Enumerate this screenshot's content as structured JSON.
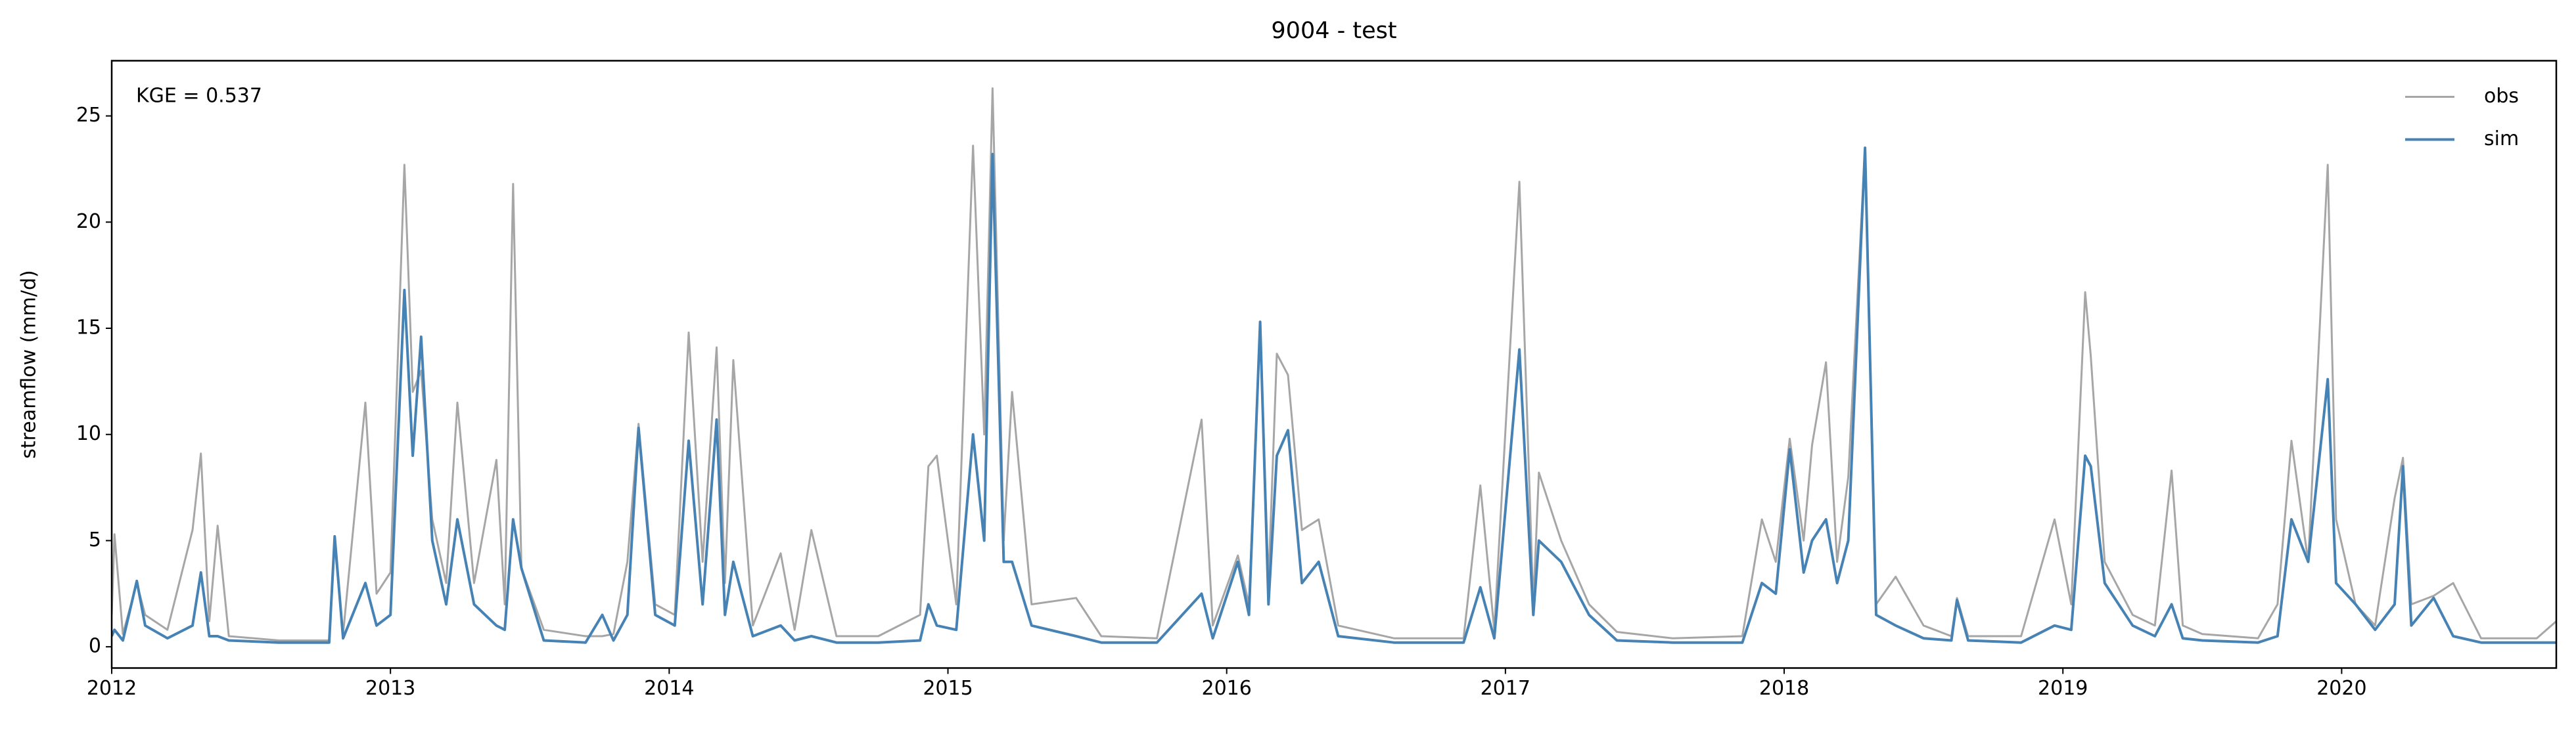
{
  "chart_data": {
    "type": "line",
    "title": "9004 - test",
    "ylabel": "streamflow (mm/d)",
    "annotation": "KGE = 0.537",
    "legend": "upper right",
    "grid": false,
    "xlim": [
      2012,
      2020.77
    ],
    "xticks": [
      2012,
      2013,
      2014,
      2015,
      2016,
      2017,
      2018,
      2019,
      2020
    ],
    "ylim": [
      -1.0,
      27.6
    ],
    "yticks": [
      0,
      5,
      10,
      15,
      20,
      25
    ],
    "x": [
      2012.0,
      2012.01,
      2012.04,
      2012.09,
      2012.12,
      2012.2,
      2012.29,
      2012.32,
      2012.35,
      2012.38,
      2012.42,
      2012.6,
      2012.78,
      2012.8,
      2012.83,
      2012.91,
      2012.95,
      2013.0,
      2013.05,
      2013.08,
      2013.11,
      2013.15,
      2013.2,
      2013.24,
      2013.3,
      2013.38,
      2013.41,
      2013.44,
      2013.47,
      2013.55,
      2013.7,
      2013.76,
      2013.8,
      2013.85,
      2013.89,
      2013.95,
      2014.02,
      2014.07,
      2014.12,
      2014.17,
      2014.2,
      2014.23,
      2014.3,
      2014.4,
      2014.45,
      2014.51,
      2014.6,
      2014.75,
      2014.9,
      2014.93,
      2014.96,
      2015.03,
      2015.09,
      2015.13,
      2015.16,
      2015.2,
      2015.23,
      2015.3,
      2015.46,
      2015.55,
      2015.75,
      2015.91,
      2015.95,
      2016.04,
      2016.08,
      2016.12,
      2016.15,
      2016.18,
      2016.22,
      2016.27,
      2016.33,
      2016.4,
      2016.6,
      2016.85,
      2016.91,
      2016.96,
      2017.05,
      2017.1,
      2017.12,
      2017.2,
      2017.3,
      2017.4,
      2017.6,
      2017.85,
      2017.92,
      2017.97,
      2018.02,
      2018.07,
      2018.1,
      2018.15,
      2018.19,
      2018.23,
      2018.29,
      2018.33,
      2018.4,
      2018.5,
      2018.6,
      2018.62,
      2018.66,
      2018.85,
      2018.97,
      2019.03,
      2019.08,
      2019.1,
      2019.15,
      2019.25,
      2019.33,
      2019.39,
      2019.43,
      2019.5,
      2019.7,
      2019.77,
      2019.82,
      2019.88,
      2019.95,
      2019.98,
      2020.05,
      2020.12,
      2020.19,
      2020.22,
      2020.25,
      2020.33,
      2020.4,
      2020.5,
      2020.7,
      2020.77
    ],
    "series": [
      {
        "name": "obs",
        "color": "#a6a6a6",
        "values": [
          1.5,
          5.3,
          0.6,
          3.0,
          1.5,
          0.8,
          5.5,
          9.1,
          1.2,
          5.7,
          0.5,
          0.3,
          0.3,
          4.8,
          0.6,
          11.5,
          2.5,
          3.5,
          22.7,
          12.0,
          13.0,
          6.0,
          3.0,
          11.5,
          3.0,
          8.8,
          2.0,
          21.8,
          3.7,
          0.8,
          0.5,
          0.5,
          0.6,
          4.0,
          10.5,
          2.0,
          1.5,
          14.8,
          4.0,
          14.1,
          3.0,
          13.5,
          1.0,
          4.4,
          0.8,
          5.5,
          0.5,
          0.5,
          1.5,
          8.5,
          9.0,
          2.0,
          23.6,
          10.0,
          26.3,
          5.0,
          12.0,
          2.0,
          2.3,
          0.5,
          0.4,
          10.7,
          1.0,
          4.3,
          2.0,
          15.0,
          3.0,
          13.8,
          12.8,
          5.5,
          6.0,
          1.0,
          0.4,
          0.4,
          7.6,
          0.8,
          21.9,
          2.0,
          8.2,
          5.0,
          2.0,
          0.7,
          0.4,
          0.5,
          6.0,
          4.0,
          9.8,
          5.0,
          9.5,
          13.4,
          4.0,
          8.0,
          23.5,
          2.0,
          3.3,
          1.0,
          0.5,
          2.3,
          0.5,
          0.5,
          6.0,
          2.0,
          16.7,
          13.7,
          4.0,
          1.5,
          1.0,
          8.3,
          1.0,
          0.6,
          0.4,
          2.0,
          9.7,
          4.0,
          22.7,
          6.0,
          2.0,
          1.0,
          7.0,
          8.9,
          2.0,
          2.4,
          3.0,
          0.4,
          0.4,
          1.2
        ]
      },
      {
        "name": "sim",
        "color": "#4682b4",
        "values": [
          0.5,
          0.8,
          0.3,
          3.1,
          1.0,
          0.4,
          1.0,
          3.5,
          0.5,
          0.5,
          0.3,
          0.2,
          0.2,
          5.2,
          0.4,
          3.0,
          1.0,
          1.5,
          16.8,
          9.0,
          14.6,
          5.0,
          2.0,
          6.0,
          2.0,
          1.0,
          0.8,
          6.0,
          3.7,
          0.3,
          0.2,
          1.5,
          0.3,
          1.5,
          10.3,
          1.5,
          1.0,
          9.7,
          2.0,
          10.7,
          1.5,
          4.0,
          0.5,
          1.0,
          0.3,
          0.5,
          0.2,
          0.2,
          0.3,
          2.0,
          1.0,
          0.8,
          10.0,
          5.0,
          23.2,
          4.0,
          4.0,
          1.0,
          0.5,
          0.2,
          0.2,
          2.5,
          0.4,
          4.0,
          1.5,
          15.3,
          2.0,
          9.0,
          10.2,
          3.0,
          4.0,
          0.5,
          0.2,
          0.2,
          2.8,
          0.4,
          14.0,
          1.5,
          5.0,
          4.0,
          1.5,
          0.3,
          0.2,
          0.2,
          3.0,
          2.5,
          9.3,
          3.5,
          5.0,
          6.0,
          3.0,
          5.0,
          23.5,
          1.5,
          1.0,
          0.4,
          0.3,
          2.2,
          0.3,
          0.2,
          1.0,
          0.8,
          9.0,
          8.5,
          3.0,
          1.0,
          0.5,
          2.0,
          0.4,
          0.3,
          0.2,
          0.5,
          6.0,
          4.0,
          12.6,
          3.0,
          2.0,
          0.8,
          2.0,
          8.5,
          1.0,
          2.3,
          0.5,
          0.2,
          0.2,
          0.2
        ]
      }
    ]
  }
}
